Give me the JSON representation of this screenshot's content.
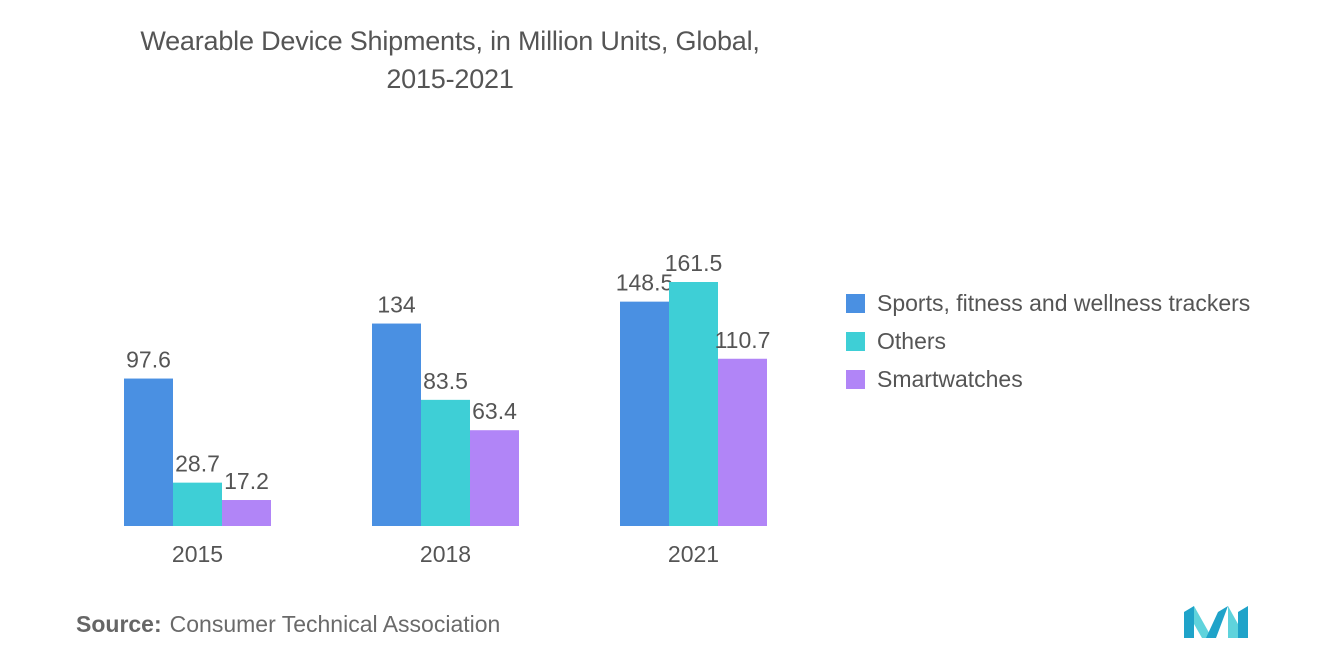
{
  "title": {
    "line1": "Wearable Device Shipments, in Million Units, Global,",
    "line2": "2015-2021"
  },
  "source": {
    "label": "Source:",
    "text": "Consumer Technical Association"
  },
  "colors": {
    "sports": "#4a90e2",
    "others": "#3ecfd6",
    "smartwatches": "#b185f7",
    "text": "#555555"
  },
  "logo": {
    "icon": "mordor-intelligence-logo-icon"
  },
  "chart_data": {
    "type": "bar",
    "categories": [
      "2015",
      "2018",
      "2021"
    ],
    "series": [
      {
        "name": "Sports, fitness and wellness trackers",
        "values": [
          97.6,
          134,
          148.5
        ],
        "value_labels": [
          "97.6",
          "134",
          "148.5"
        ],
        "color": "#4a90e2"
      },
      {
        "name": "Others",
        "values": [
          28.7,
          83.5,
          161.5
        ],
        "value_labels": [
          "28.7",
          "83.5",
          "161.5"
        ],
        "color": "#3ecfd6"
      },
      {
        "name": "Smartwatches",
        "values": [
          17.2,
          63.4,
          110.7
        ],
        "value_labels": [
          "17.2",
          "63.4",
          "110.7"
        ],
        "color": "#b185f7"
      }
    ],
    "legend_position": "right",
    "grid": false,
    "yaxis_visible": false,
    "ylim": [
      0,
      161.5
    ]
  }
}
